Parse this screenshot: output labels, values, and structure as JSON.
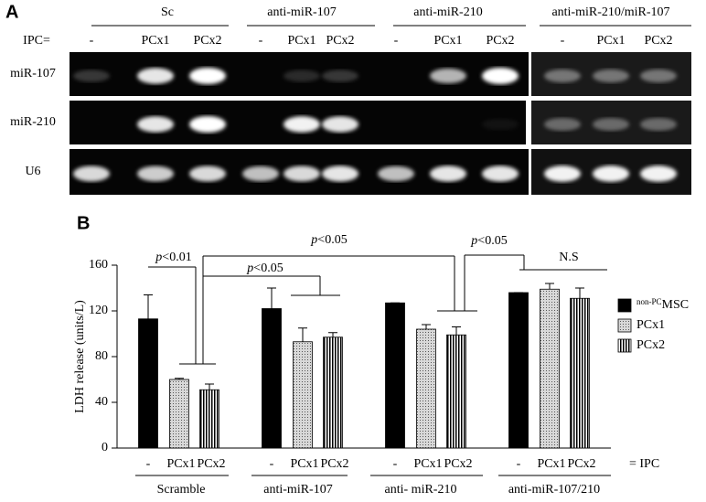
{
  "panel_a": {
    "label": "A",
    "groups": [
      "Sc",
      "anti-miR-107",
      "anti-miR-210",
      "anti-miR-210/miR-107"
    ],
    "ipc_label": "IPC=",
    "lanes": [
      "-",
      "PCx1",
      "PCx2"
    ],
    "rows": [
      "miR-107",
      "miR-210",
      "U6"
    ]
  },
  "chart_data": {
    "type": "bar",
    "panel_label": "B",
    "ylabel": "LDH release (units/L)",
    "categories": [
      "Scramble",
      "anti-miR-107",
      "anti- miR-210",
      "anti-miR-107/210"
    ],
    "subcategories": [
      "-",
      "PCx1",
      "PCx2"
    ],
    "subcategory_suffix": "= IPC",
    "series": [
      {
        "name_prefix": "non-PC",
        "name": "MSC",
        "color": "#000000",
        "pattern": "solid",
        "values": [
          113,
          122,
          127,
          136
        ],
        "errors": [
          21,
          18,
          0,
          0
        ]
      },
      {
        "name": "PCx1",
        "color": "#c8c8c8",
        "pattern": "dots",
        "values": [
          60,
          93,
          104,
          139
        ],
        "errors": [
          1,
          12,
          4,
          5
        ]
      },
      {
        "name": "PCx2",
        "color": "#000000",
        "pattern": "vstripes",
        "values": [
          51,
          97,
          99,
          131
        ],
        "errors": [
          5,
          4,
          7,
          9
        ]
      }
    ],
    "ylim": [
      0,
      160
    ],
    "yticks": [
      0,
      40,
      80,
      120,
      160
    ],
    "legend": "right",
    "annotations": [
      {
        "italic": "p",
        "text": "<0.01"
      },
      {
        "italic": "p",
        "text": "<0.05"
      },
      {
        "italic": "p",
        "text": "<0.05"
      },
      {
        "italic": "p",
        "text": "<0.05"
      },
      {
        "text": "N.S"
      }
    ]
  }
}
